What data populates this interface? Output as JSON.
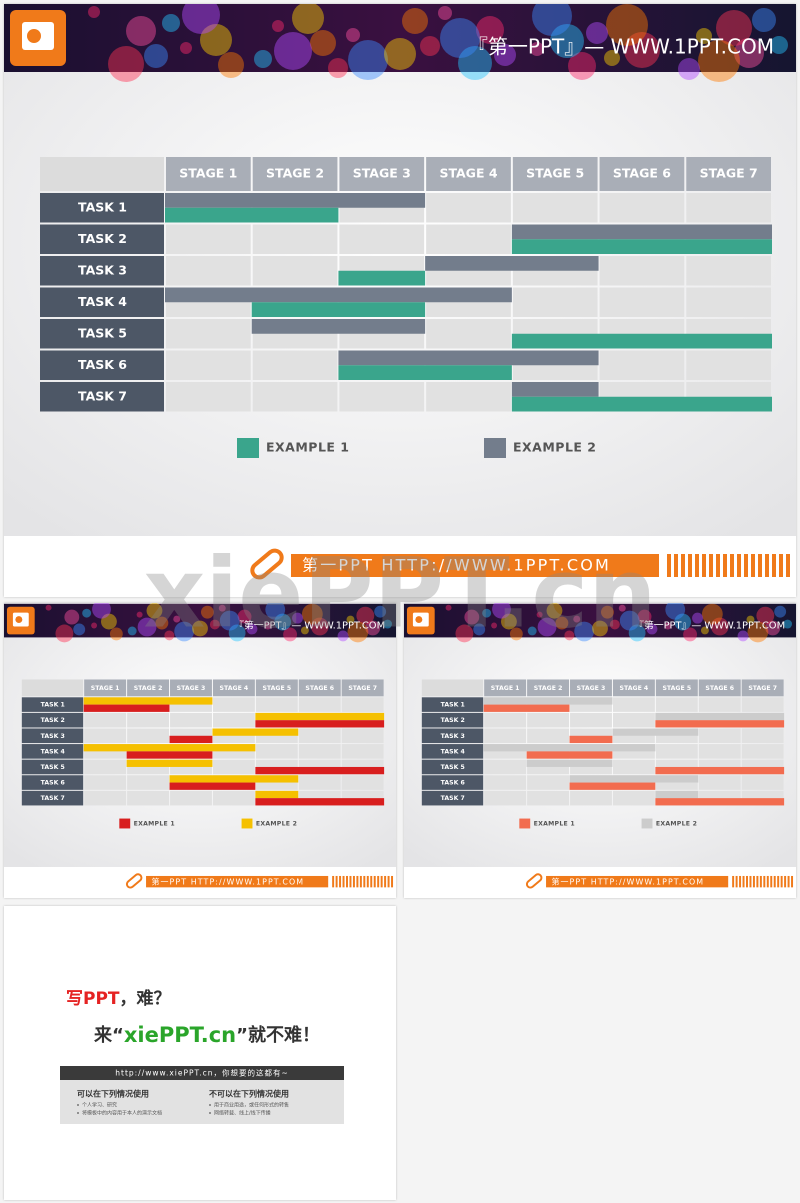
{
  "watermark": "xiePPT.cn",
  "slides": [
    {
      "header": "『第一PPT』— WWW.1PPT.COM",
      "stages": [
        "STAGE 1",
        "STAGE 2",
        "STAGE 3",
        "STAGE 4",
        "STAGE 5",
        "STAGE 6",
        "STAGE 7"
      ],
      "tasks": [
        {
          "label": "TASK 1",
          "example1": [
            0,
            2
          ],
          "example2": [
            0,
            3
          ]
        },
        {
          "label": "TASK 2",
          "example1": [
            4,
            7
          ],
          "example2": [
            4,
            7
          ]
        },
        {
          "label": "TASK 3",
          "example1": [
            2,
            3
          ],
          "example2": [
            3,
            5
          ]
        },
        {
          "label": "TASK 4",
          "example1": [
            1,
            3
          ],
          "example2": [
            0,
            4
          ]
        },
        {
          "label": "TASK 5",
          "example1": [
            4,
            7
          ],
          "example2": [
            1,
            3
          ]
        },
        {
          "label": "TASK 6",
          "example1": [
            2,
            4
          ],
          "example2": [
            2,
            5
          ]
        },
        {
          "label": "TASK 7",
          "example1": [
            4,
            7
          ],
          "example2": [
            4,
            5
          ]
        }
      ],
      "legend": [
        {
          "name": "EXAMPLE 1",
          "color": "#3aa58c"
        },
        {
          "name": "EXAMPLE 2",
          "color": "#737d8c"
        }
      ],
      "footer": "第一PPT HTTP://WWW.1PPT.COM"
    },
    {
      "header": "『第一PPT』— WWW.1PPT.COM",
      "stages": [
        "STAGE 1",
        "STAGE 2",
        "STAGE 3",
        "STAGE 4",
        "STAGE 5",
        "STAGE 6",
        "STAGE 7"
      ],
      "tasks": [
        {
          "label": "TASK 1",
          "example1": [
            0,
            2
          ],
          "example2": [
            0,
            3
          ]
        },
        {
          "label": "TASK 2",
          "example1": [
            4,
            7
          ],
          "example2": [
            4,
            7
          ]
        },
        {
          "label": "TASK 3",
          "example1": [
            2,
            3
          ],
          "example2": [
            3,
            5
          ]
        },
        {
          "label": "TASK 4",
          "example1": [
            1,
            3
          ],
          "example2": [
            0,
            4
          ]
        },
        {
          "label": "TASK 5",
          "example1": [
            4,
            7
          ],
          "example2": [
            1,
            3
          ]
        },
        {
          "label": "TASK 6",
          "example1": [
            2,
            4
          ],
          "example2": [
            2,
            5
          ]
        },
        {
          "label": "TASK 7",
          "example1": [
            4,
            7
          ],
          "example2": [
            4,
            5
          ]
        }
      ],
      "legend": [
        {
          "name": "EXAMPLE 1",
          "color": "#d81e1e"
        },
        {
          "name": "EXAMPLE 2",
          "color": "#f5c000"
        }
      ],
      "footer": "第一PPT HTTP://WWW.1PPT.COM"
    },
    {
      "header": "『第一PPT』— WWW.1PPT.COM",
      "stages": [
        "STAGE 1",
        "STAGE 2",
        "STAGE 3",
        "STAGE 4",
        "STAGE 5",
        "STAGE 6",
        "STAGE 7"
      ],
      "tasks": [
        {
          "label": "TASK 1",
          "example1": [
            0,
            2
          ],
          "example2": [
            0,
            3
          ]
        },
        {
          "label": "TASK 2",
          "example1": [
            4,
            7
          ],
          "example2": [
            4,
            7
          ]
        },
        {
          "label": "TASK 3",
          "example1": [
            2,
            3
          ],
          "example2": [
            3,
            5
          ]
        },
        {
          "label": "TASK 4",
          "example1": [
            1,
            3
          ],
          "example2": [
            0,
            4
          ]
        },
        {
          "label": "TASK 5",
          "example1": [
            4,
            7
          ],
          "example2": [
            1,
            3
          ]
        },
        {
          "label": "TASK 6",
          "example1": [
            2,
            4
          ],
          "example2": [
            2,
            5
          ]
        },
        {
          "label": "TASK 7",
          "example1": [
            4,
            7
          ],
          "example2": [
            4,
            5
          ]
        }
      ],
      "legend": [
        {
          "name": "EXAMPLE 1",
          "color": "#f26c4f"
        },
        {
          "name": "EXAMPLE 2",
          "color": "#cccccc"
        }
      ],
      "footer": "第一PPT HTTP://WWW.1PPT.COM"
    }
  ],
  "promo": {
    "line1": [
      "写PPT",
      "，难？"
    ],
    "line2": [
      "来“",
      "xiePPT.cn",
      "”就不难！"
    ],
    "banner": "http://www.xiePPT.cn，你想要的这都有~",
    "can": {
      "title": "可以在下列情况使用",
      "items": [
        "个人学习、研究",
        "将模板中的内容用于本人的演示文档"
      ]
    },
    "cannot": {
      "title": "不可以在下列情况使用",
      "items": [
        "用于商业用途，或任何形式的转售",
        "网络转载、线上/线下传播"
      ]
    }
  }
}
